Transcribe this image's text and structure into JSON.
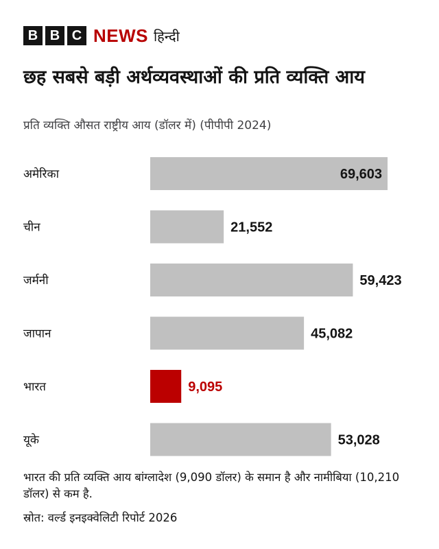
{
  "brand": {
    "letters": [
      "B",
      "B",
      "C"
    ],
    "news": "NEWS",
    "language": "हिन्दी",
    "accent_color": "#b80000"
  },
  "chart_data": {
    "type": "bar",
    "orientation": "horizontal",
    "title": "छह सबसे बड़ी अर्थव्यवस्थाओं की प्रति व्यक्ति आय",
    "subtitle": "प्रति व्यक्ति औसत राष्ट्रीय आय (डॉलर में) (पीपीपी 2024)",
    "categories": [
      "अमेरिका",
      "चीन",
      "जर्मनी",
      "जापान",
      "भारत",
      "यूके"
    ],
    "values": [
      69603,
      21552,
      59423,
      45082,
      9095,
      53028
    ],
    "labels": [
      "69,603",
      "21,552",
      "59,423",
      "45,082",
      "9,095",
      "53,028"
    ],
    "highlight": "भारत",
    "colors": {
      "default": "#c0c0c0",
      "highlight": "#bb0000"
    },
    "xlim": [
      0,
      70000
    ],
    "grid": false,
    "axis_visible": false
  },
  "footnote": "भारत की प्रति व्यक्ति आय बांग्लादेश (9,090 डॉलर) के समान है और नामीबिया (10,210 डॉलर) से कम है.",
  "source": "स्रोत: वर्ल्ड इनइक्वेलिटी रिपोर्ट 2026"
}
